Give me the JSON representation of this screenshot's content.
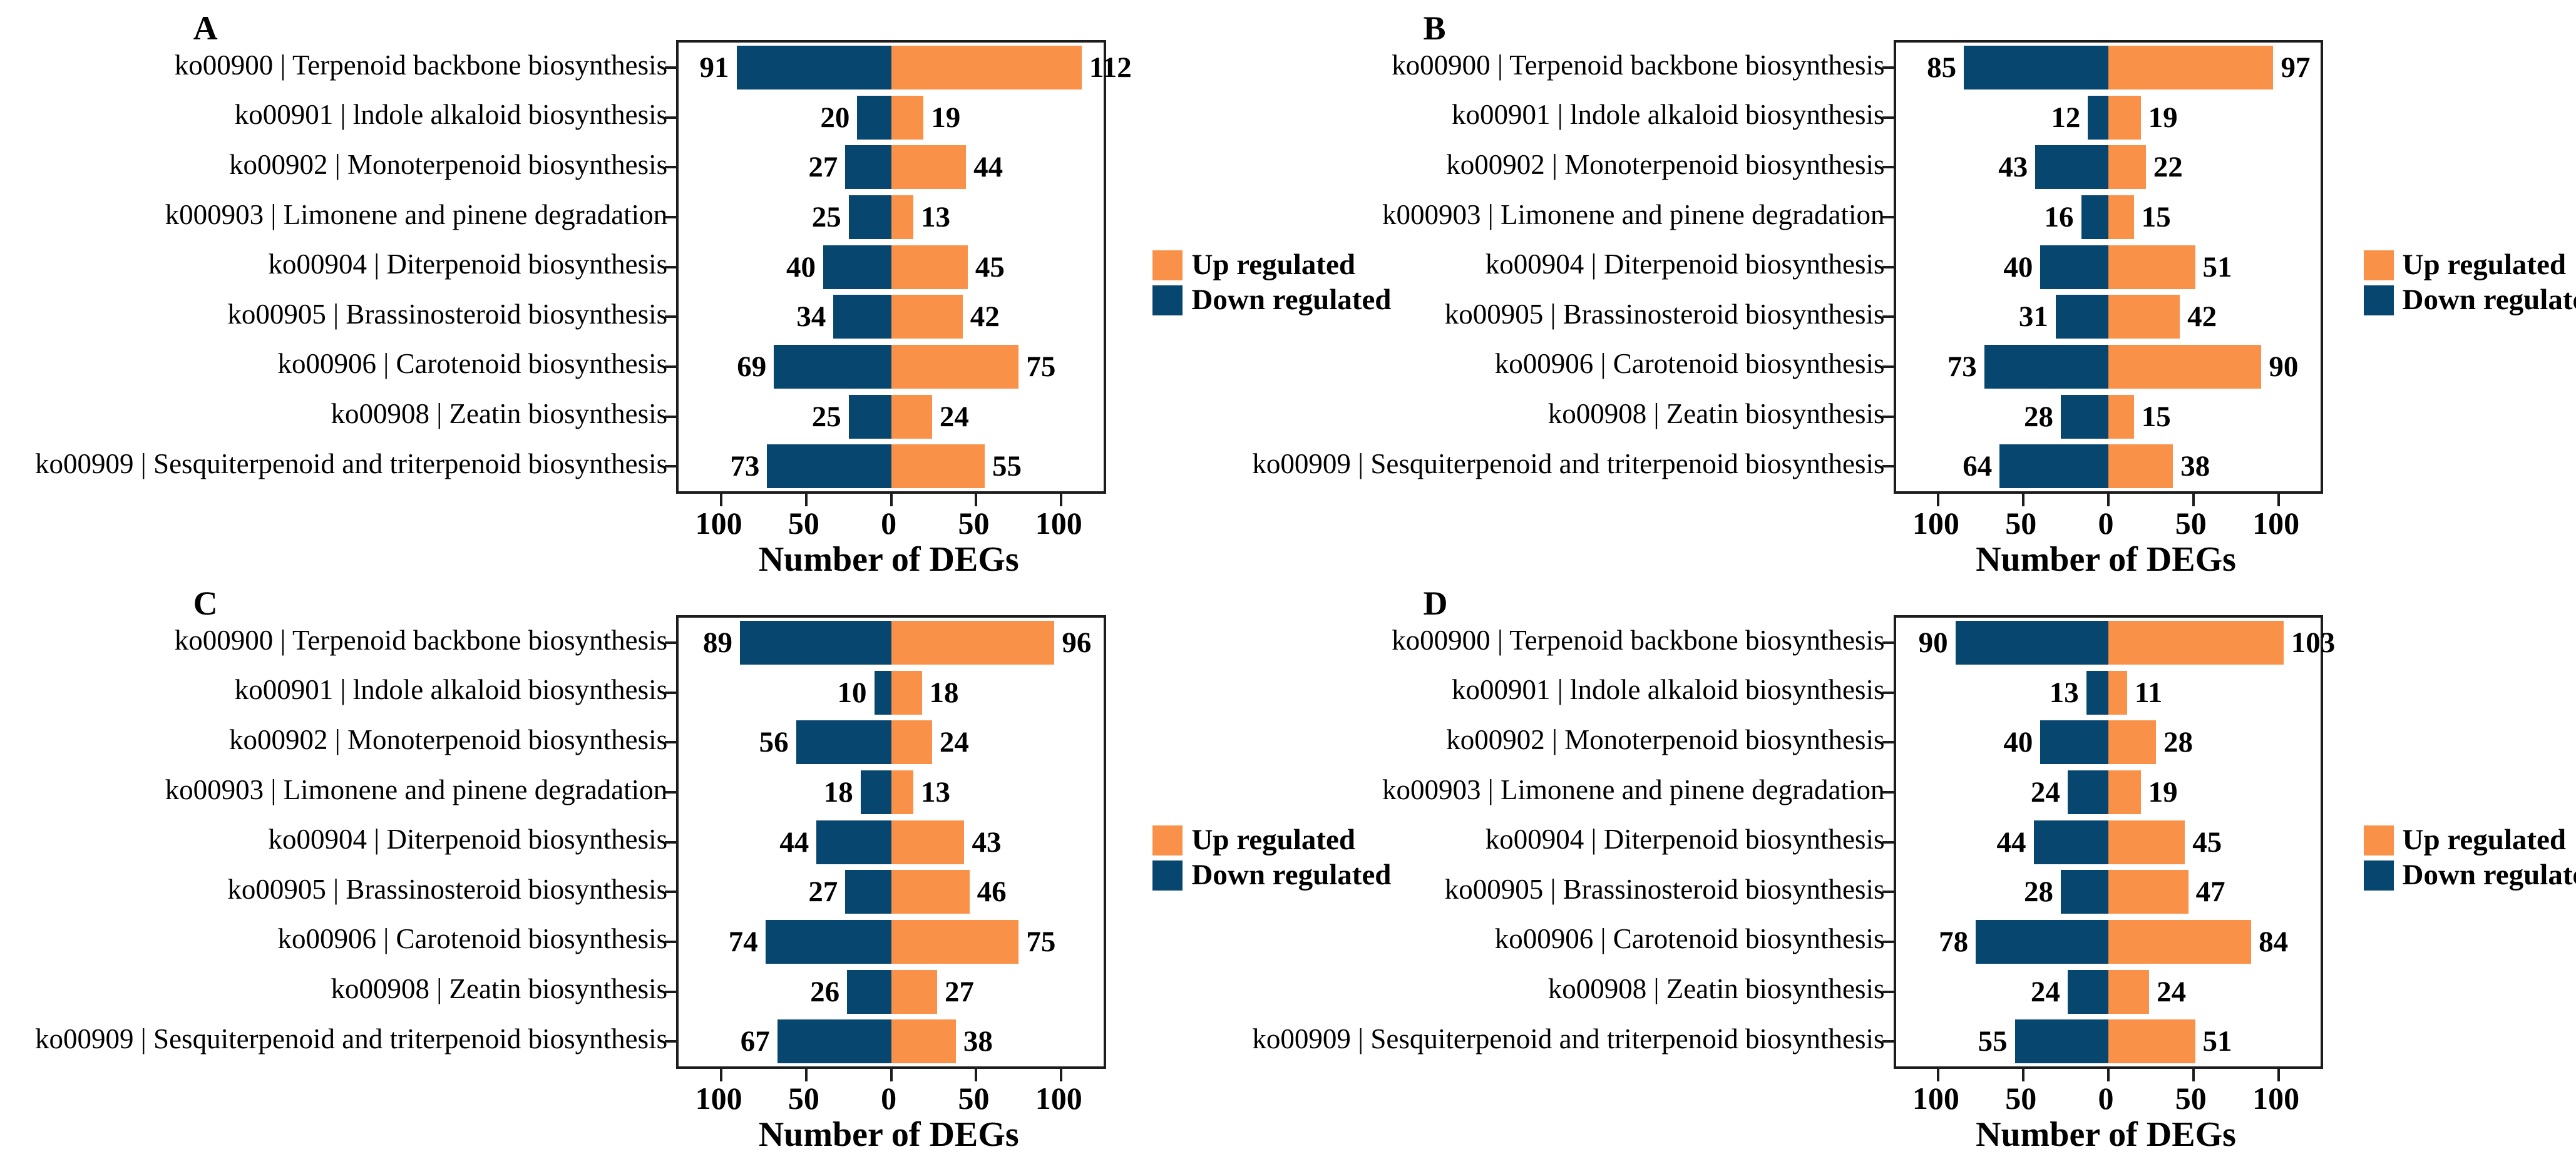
{
  "figure_title": "",
  "legend": {
    "up_label": "Up regulated",
    "down_label": "Down regulated"
  },
  "colors": {
    "up": "#FA9148",
    "down": "#07466E",
    "axis": "#1c1c1c"
  },
  "axis": {
    "xlabel": "Number of DEGs",
    "xtick_labels": [
      "100",
      "50",
      "0",
      "50",
      "100"
    ]
  },
  "chart_data": [
    {
      "type": "bar",
      "panel": "A",
      "orientation": "horizontal-diverging",
      "xlabel": "Number of DEGs",
      "xlim": [
        -125,
        125
      ],
      "xticks": [
        -100,
        -50,
        0,
        50,
        100
      ],
      "grid": false,
      "legend_position": "right-middle",
      "categories": [
        "ko00900 | Terpenoid backbone biosynthesis",
        "ko00901 | lndole alkaloid biosynthesis",
        "ko00902 | Monoterpenoid biosynthesis",
        "k000903 | Limonene and pinene degradation",
        "ko00904 | Diterpenoid biosynthesis",
        "ko00905 | Brassinosteroid biosynthesis",
        "ko00906 | Carotenoid biosynthesis",
        "ko00908 | Zeatin biosynthesis",
        "ko00909 | Sesquiterpenoid and triterpenoid biosynthesis"
      ],
      "series": [
        {
          "name": "Up regulated",
          "values": [
            112,
            19,
            44,
            13,
            45,
            42,
            75,
            24,
            55
          ]
        },
        {
          "name": "Down regulated",
          "values": [
            91,
            20,
            27,
            25,
            40,
            34,
            69,
            25,
            73
          ]
        }
      ]
    },
    {
      "type": "bar",
      "panel": "B",
      "orientation": "horizontal-diverging",
      "xlabel": "Number of DEGs",
      "xlim": [
        -125,
        125
      ],
      "xticks": [
        -100,
        -50,
        0,
        50,
        100
      ],
      "grid": false,
      "legend_position": "right-middle",
      "categories": [
        "ko00900 | Terpenoid backbone biosynthesis",
        "ko00901 | lndole alkaloid biosynthesis",
        "ko00902 | Monoterpenoid biosynthesis",
        "k000903 | Limonene and pinene degradation",
        "ko00904 | Diterpenoid biosynthesis",
        "ko00905 | Brassinosteroid biosynthesis",
        "ko00906 | Carotenoid biosynthesis",
        "ko00908 | Zeatin biosynthesis",
        "ko00909 | Sesquiterpenoid and triterpenoid biosynthesis"
      ],
      "series": [
        {
          "name": "Up regulated",
          "values": [
            97,
            19,
            22,
            15,
            51,
            42,
            90,
            15,
            38
          ]
        },
        {
          "name": "Down regulated",
          "values": [
            85,
            12,
            43,
            16,
            40,
            31,
            73,
            28,
            64
          ]
        }
      ]
    },
    {
      "type": "bar",
      "panel": "C",
      "orientation": "horizontal-diverging",
      "xlabel": "Number of DEGs",
      "xlim": [
        -125,
        125
      ],
      "xticks": [
        -100,
        -50,
        0,
        50,
        100
      ],
      "grid": false,
      "legend_position": "right-middle",
      "categories": [
        "ko00900 | Terpenoid backbone biosynthesis",
        "ko00901 | lndole alkaloid biosynthesis",
        "ko00902 | Monoterpenoid biosynthesis",
        "ko00903 | Limonene and pinene degradation",
        "ko00904 | Diterpenoid biosynthesis",
        "ko00905 | Brassinosteroid biosynthesis",
        "ko00906 | Carotenoid biosynthesis",
        "ko00908 | Zeatin biosynthesis",
        "ko00909 | Sesquiterpenoid and triterpenoid biosynthesis"
      ],
      "series": [
        {
          "name": "Up regulated",
          "values": [
            96,
            18,
            24,
            13,
            43,
            46,
            75,
            27,
            38
          ]
        },
        {
          "name": "Down regulated",
          "values": [
            89,
            10,
            56,
            18,
            44,
            27,
            74,
            26,
            67
          ]
        }
      ]
    },
    {
      "type": "bar",
      "panel": "D",
      "orientation": "horizontal-diverging",
      "xlabel": "Number of DEGs",
      "xlim": [
        -125,
        125
      ],
      "xticks": [
        -100,
        -50,
        0,
        50,
        100
      ],
      "grid": false,
      "legend_position": "right-middle",
      "categories": [
        "ko00900 | Terpenoid backbone biosynthesis",
        "ko00901 | lndole alkaloid biosynthesis",
        "ko00902 | Monoterpenoid biosynthesis",
        "ko00903 | Limonene and pinene degradation",
        "ko00904 | Diterpenoid biosynthesis",
        "ko00905 | Brassinosteroid biosynthesis",
        "ko00906 | Carotenoid biosynthesis",
        "ko00908 | Zeatin biosynthesis",
        "ko00909 | Sesquiterpenoid and triterpenoid biosynthesis"
      ],
      "series": [
        {
          "name": "Up regulated",
          "values": [
            103,
            11,
            28,
            19,
            45,
            47,
            84,
            24,
            51
          ]
        },
        {
          "name": "Down regulated",
          "values": [
            90,
            13,
            40,
            24,
            44,
            28,
            78,
            24,
            55
          ]
        }
      ]
    }
  ]
}
